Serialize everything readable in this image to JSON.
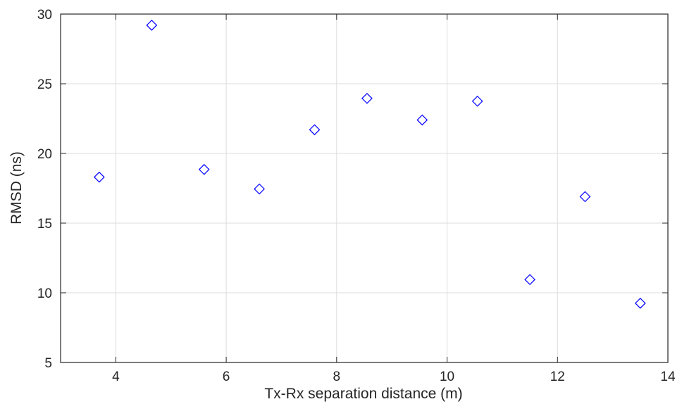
{
  "chart_data": {
    "type": "scatter",
    "title": "",
    "xlabel": "Tx-Rx separation distance (m)",
    "ylabel": "RMSD (ns)",
    "xlim": [
      3,
      14
    ],
    "ylim": [
      5,
      30
    ],
    "xticks": [
      4,
      6,
      8,
      10,
      12,
      14
    ],
    "yticks": [
      5,
      10,
      15,
      20,
      25,
      30
    ],
    "grid": true,
    "marker": "diamond",
    "marker_color": "#0000ff",
    "points": [
      {
        "x": 3.7,
        "y": 18.3
      },
      {
        "x": 4.65,
        "y": 29.2
      },
      {
        "x": 5.6,
        "y": 18.85
      },
      {
        "x": 6.6,
        "y": 17.45
      },
      {
        "x": 7.6,
        "y": 21.7
      },
      {
        "x": 8.55,
        "y": 23.95
      },
      {
        "x": 9.55,
        "y": 22.4
      },
      {
        "x": 10.55,
        "y": 23.75
      },
      {
        "x": 11.5,
        "y": 10.95
      },
      {
        "x": 12.5,
        "y": 16.9
      },
      {
        "x": 13.5,
        "y": 9.25
      }
    ]
  }
}
